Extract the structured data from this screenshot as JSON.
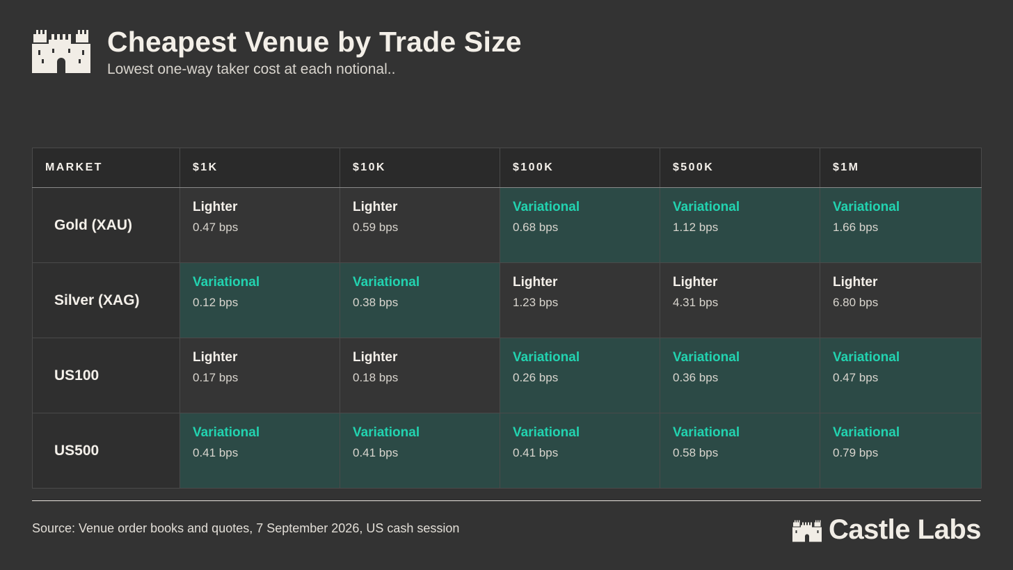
{
  "header": {
    "title": "Cheapest Venue by Trade Size",
    "subtitle": "Lowest one-way taker cost at each notional.."
  },
  "chart_data": {
    "type": "table",
    "columns": [
      "MARKET",
      "$1K",
      "$10K",
      "$100K",
      "$500K",
      "$1M"
    ],
    "rows": [
      {
        "market": "Gold (XAU)",
        "cells": [
          {
            "venue": "Lighter",
            "cost": "0.47 bps"
          },
          {
            "venue": "Lighter",
            "cost": "0.59 bps"
          },
          {
            "venue": "Variational",
            "cost": "0.68 bps"
          },
          {
            "venue": "Variational",
            "cost": "1.12 bps"
          },
          {
            "venue": "Variational",
            "cost": "1.66 bps"
          }
        ]
      },
      {
        "market": "Silver (XAG)",
        "cells": [
          {
            "venue": "Variational",
            "cost": "0.12 bps"
          },
          {
            "venue": "Variational",
            "cost": "0.38 bps"
          },
          {
            "venue": "Lighter",
            "cost": "1.23 bps"
          },
          {
            "venue": "Lighter",
            "cost": "4.31 bps"
          },
          {
            "venue": "Lighter",
            "cost": "6.80 bps"
          }
        ]
      },
      {
        "market": "US100",
        "cells": [
          {
            "venue": "Lighter",
            "cost": "0.17 bps"
          },
          {
            "venue": "Lighter",
            "cost": "0.18 bps"
          },
          {
            "venue": "Variational",
            "cost": "0.26 bps"
          },
          {
            "venue": "Variational",
            "cost": "0.36 bps"
          },
          {
            "venue": "Variational",
            "cost": "0.47 bps"
          }
        ]
      },
      {
        "market": "US500",
        "cells": [
          {
            "venue": "Variational",
            "cost": "0.41 bps"
          },
          {
            "venue": "Variational",
            "cost": "0.41 bps"
          },
          {
            "venue": "Variational",
            "cost": "0.41 bps"
          },
          {
            "venue": "Variational",
            "cost": "0.58 bps"
          },
          {
            "venue": "Variational",
            "cost": "0.79 bps"
          }
        ]
      }
    ]
  },
  "colors": {
    "background": "#333333",
    "variational_accent": "#22d3b0",
    "variational_fill": "#2c4a46"
  },
  "footer": {
    "source": "Source: Venue order books and quotes, 7 September 2026, US cash session",
    "brand": "Castle Labs",
    "brand_icon": "castle-icon"
  }
}
